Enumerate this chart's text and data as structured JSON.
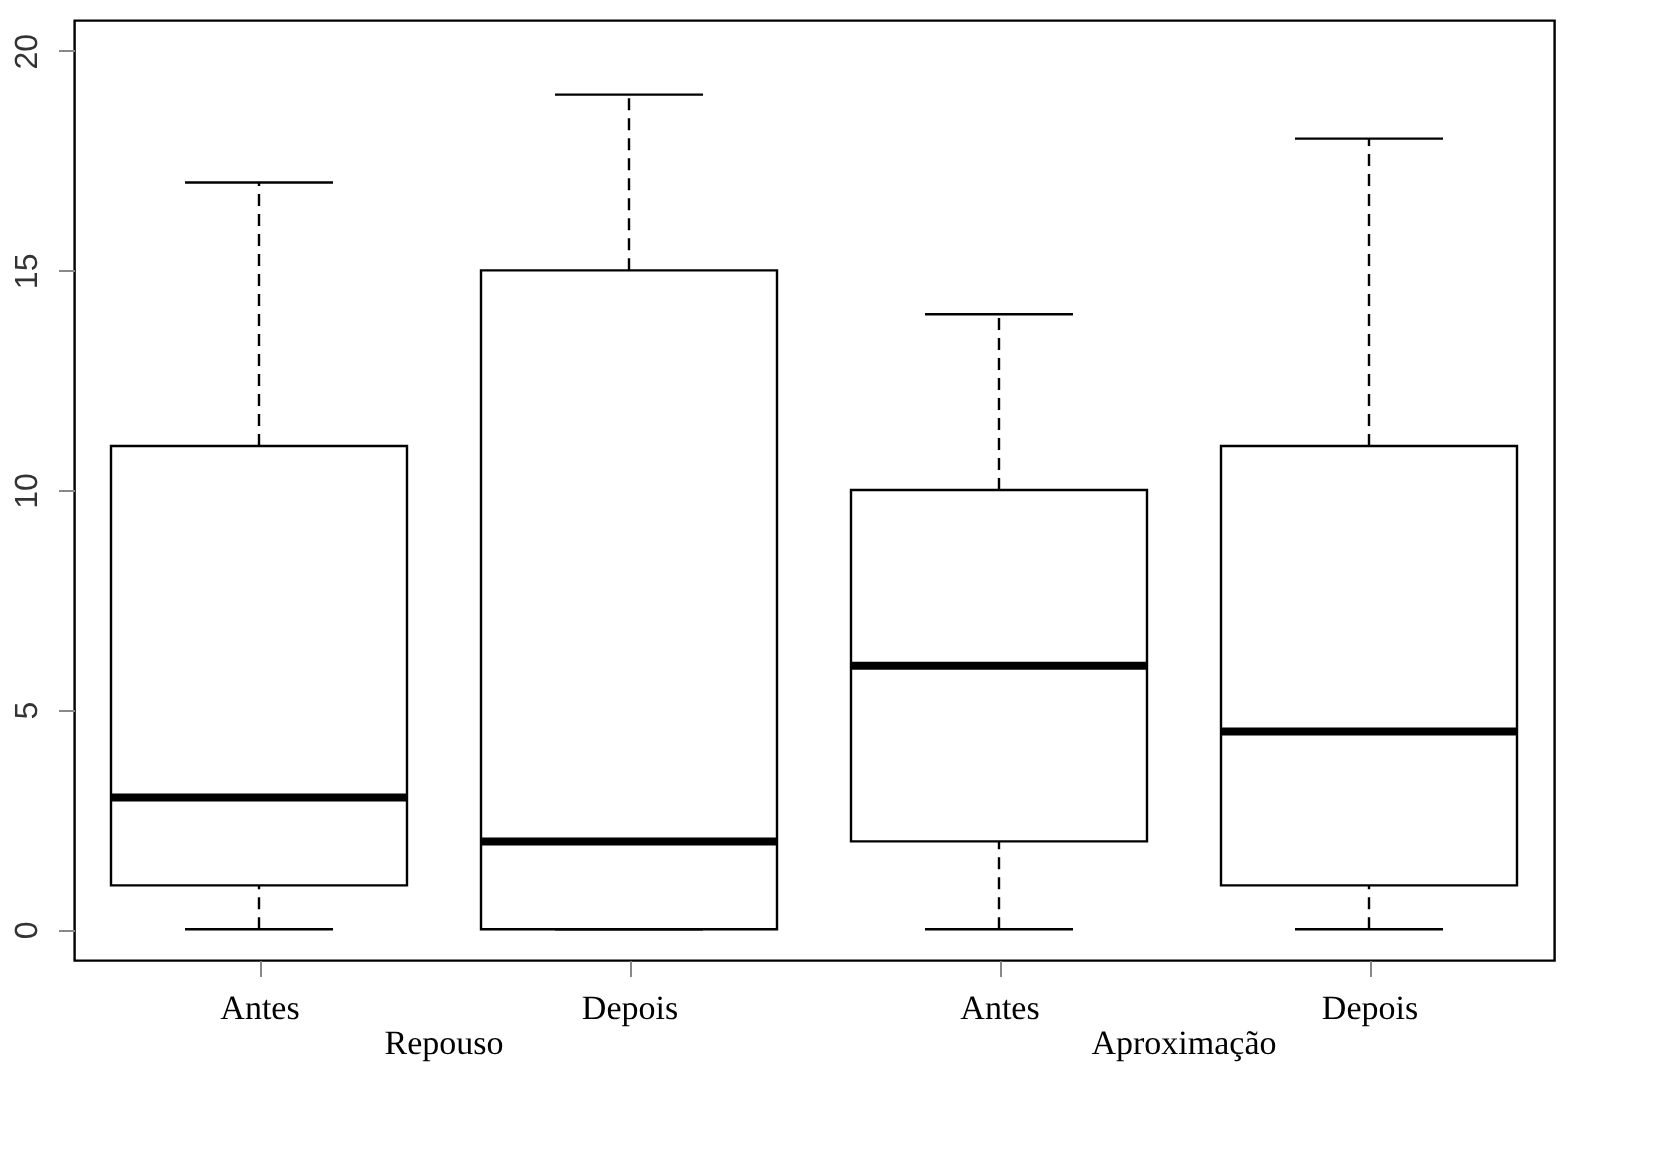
{
  "chart_data": {
    "type": "box",
    "categories": [
      "Antes",
      "Depois",
      "Antes",
      "Depois"
    ],
    "boxes": [
      {
        "low": 0,
        "q1": 1,
        "median": 3,
        "q3": 11,
        "high": 17
      },
      {
        "low": 0,
        "q1": 0,
        "median": 2,
        "q3": 15,
        "high": 19
      },
      {
        "low": 0,
        "q1": 2,
        "median": 6,
        "q3": 10,
        "high": 14
      },
      {
        "low": 0,
        "q1": 1,
        "median": 4.5,
        "q3": 11,
        "high": 18
      }
    ],
    "annotations": [
      "Repouso",
      "Aproximação"
    ],
    "ylim": [
      -0.7,
      20.7
    ],
    "yticks": [
      0,
      5,
      10,
      15,
      20
    ],
    "grid": false,
    "line_style": "dashed"
  }
}
